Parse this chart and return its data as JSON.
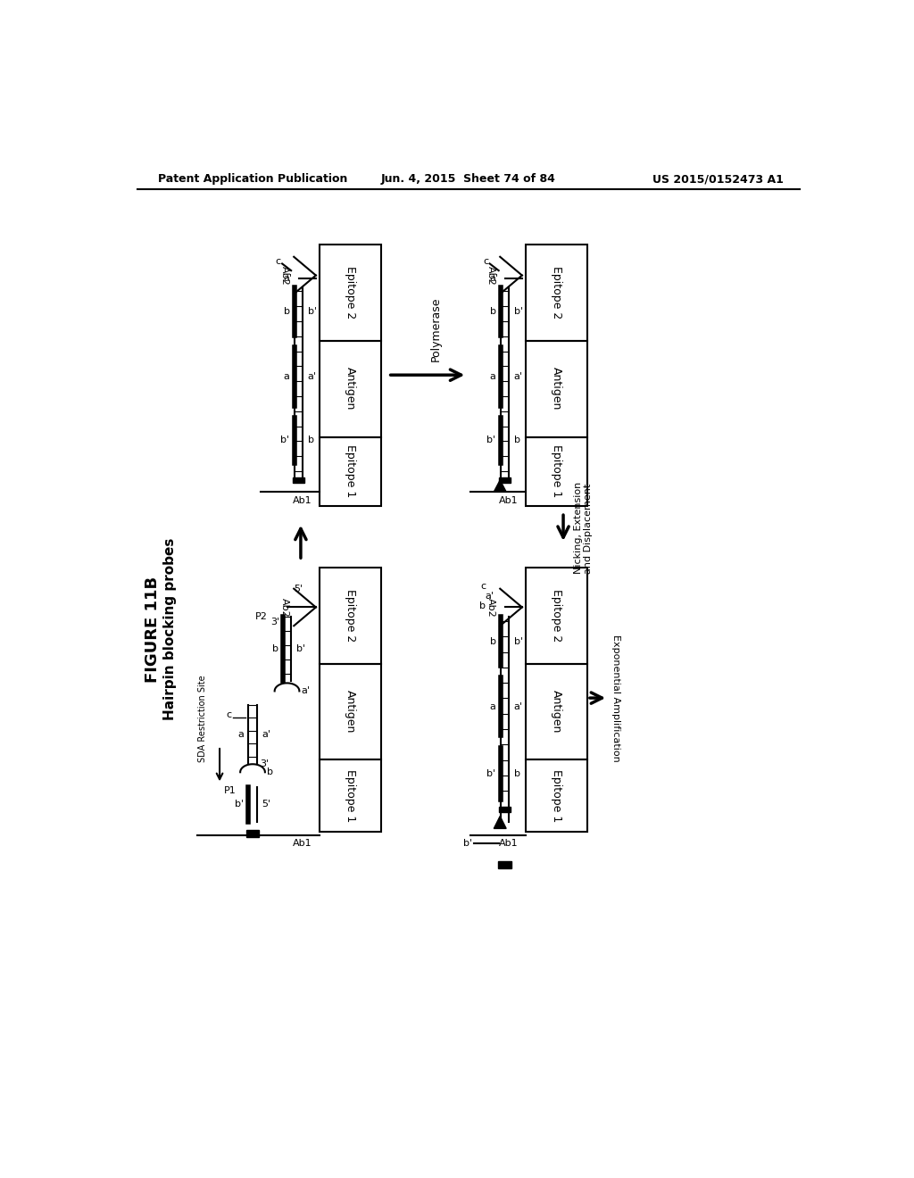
{
  "title_line1": "FIGURE 11B",
  "title_line2": "Hairpin blocking probes",
  "header_left": "Patent Application Publication",
  "header_center": "Jun. 4, 2015  Sheet 74 of 84",
  "header_right": "US 2015/0152473 A1",
  "bg_color": "#ffffff",
  "text_color": "#000000"
}
